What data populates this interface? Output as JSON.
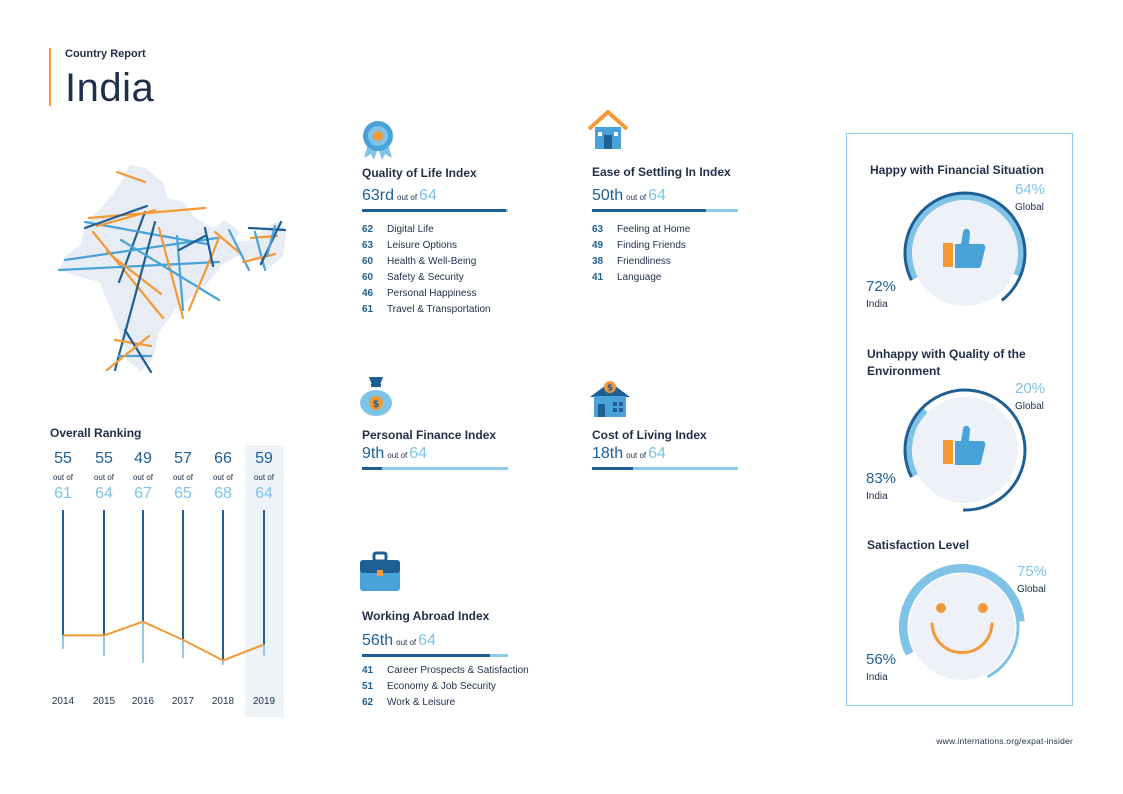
{
  "header": {
    "kicker": "Country Report",
    "title": "India"
  },
  "overall_ranking": {
    "title": "Overall Ranking",
    "out_of_label": "out of",
    "years": [
      {
        "year": "2014",
        "rank": "55",
        "total": "61"
      },
      {
        "year": "2015",
        "rank": "55",
        "total": "64"
      },
      {
        "year": "2016",
        "rank": "49",
        "total": "67"
      },
      {
        "year": "2017",
        "rank": "57",
        "total": "65"
      },
      {
        "year": "2018",
        "rank": "66",
        "total": "68"
      },
      {
        "year": "2019",
        "rank": "59",
        "total": "64"
      }
    ]
  },
  "indices": {
    "quality_of_life": {
      "title": "Quality of Life Index",
      "rank": "63rd",
      "out_of": "out of",
      "total": "64",
      "rank_fraction": 0.984,
      "items": [
        {
          "n": "62",
          "label": "Digital Life"
        },
        {
          "n": "63",
          "label": "Leisure Options"
        },
        {
          "n": "60",
          "label": "Health & Well-Being"
        },
        {
          "n": "60",
          "label": "Safety & Security"
        },
        {
          "n": "46",
          "label": "Personal Happiness"
        },
        {
          "n": "61",
          "label": "Travel & Transportation"
        }
      ]
    },
    "ease_of_settling_in": {
      "title": "Ease of Settling In Index",
      "rank": "50th",
      "out_of": "out of",
      "total": "64",
      "rank_fraction": 0.78,
      "items": [
        {
          "n": "63",
          "label": "Feeling at Home"
        },
        {
          "n": "49",
          "label": "Finding Friends"
        },
        {
          "n": "38",
          "label": "Friendliness"
        },
        {
          "n": "41",
          "label": "Language"
        }
      ]
    },
    "personal_finance": {
      "title": "Personal Finance Index",
      "rank": "9th",
      "out_of": "out of",
      "total": "64",
      "rank_fraction": 0.14
    },
    "cost_of_living": {
      "title": "Cost of Living Index",
      "rank": "18th",
      "out_of": "out of",
      "total": "64",
      "rank_fraction": 0.28
    },
    "working_abroad": {
      "title": "Working Abroad Index",
      "rank": "56th",
      "out_of": "out of",
      "total": "64",
      "rank_fraction": 0.875,
      "items": [
        {
          "n": "41",
          "label": "Career Prospects & Satisfaction"
        },
        {
          "n": "51",
          "label": "Economy & Job Security"
        },
        {
          "n": "62",
          "label": "Work & Leisure"
        }
      ]
    }
  },
  "panel": {
    "financial": {
      "title": "Happy with Financial Situation",
      "global_pct": "64%",
      "global_label": "Global",
      "india_pct": "72%",
      "india_label": "India",
      "global_value": 0.64,
      "india_value": 0.72
    },
    "environment": {
      "title": "Unhappy with Quality of the Environment",
      "global_pct": "20%",
      "global_label": "Global",
      "india_pct": "83%",
      "india_label": "India",
      "global_value": 0.2,
      "india_value": 0.83
    },
    "satisfaction": {
      "title": "Satisfaction Level",
      "global_pct": "75%",
      "global_label": "Global",
      "india_pct": "56%",
      "india_label": "India",
      "global_value": 0.75,
      "india_value": 0.56
    }
  },
  "footer": {
    "url": "www.internations.org/expat-insider"
  },
  "colors": {
    "dark_blue": "#1f5f93",
    "light_blue": "#7fc3e6",
    "orange": "#f29a35",
    "navy": "#1f2f4a"
  },
  "chart_data": {
    "type": "line",
    "title": "Overall Ranking",
    "categories": [
      "2014",
      "2015",
      "2016",
      "2017",
      "2018",
      "2019"
    ],
    "series": [
      {
        "values": [
          55,
          55,
          49,
          57,
          66,
          59
        ]
      }
    ],
    "totals": [
      61,
      64,
      67,
      65,
      68,
      64
    ],
    "ylim": [
      0,
      68
    ],
    "y_inverted": true,
    "grid": false
  }
}
